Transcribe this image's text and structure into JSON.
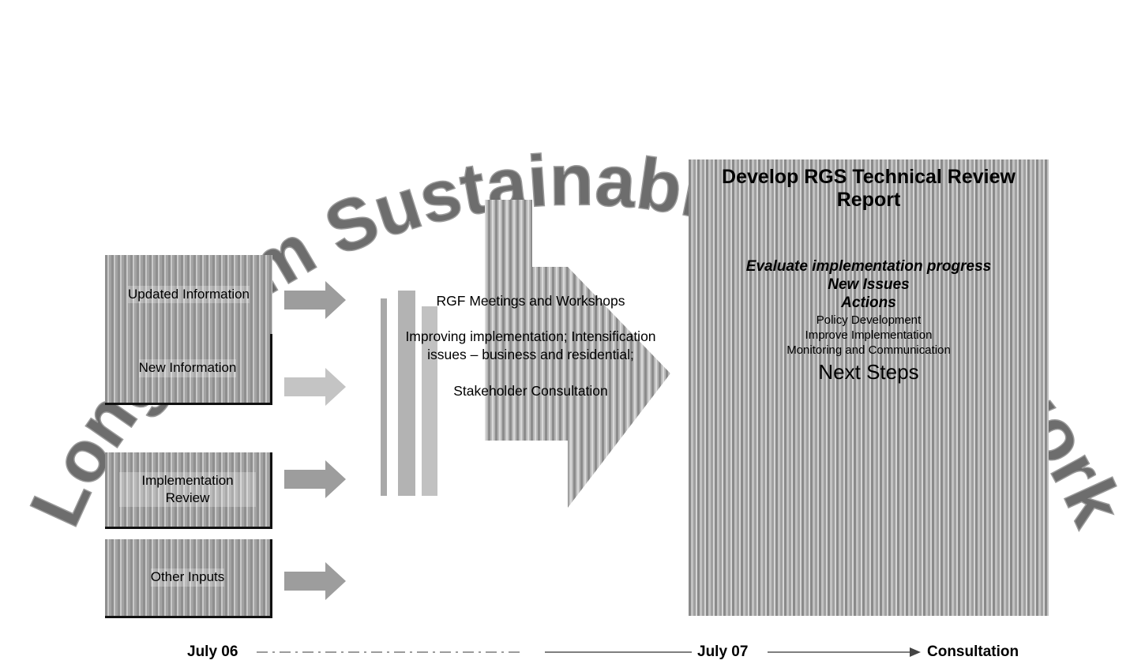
{
  "arc_title": "Long Term Sustainability Framework",
  "inputs": [
    {
      "label": "Updated Information"
    },
    {
      "label": "New Information"
    },
    {
      "label": "Implementation Review"
    },
    {
      "label": "Other Inputs"
    }
  ],
  "center": {
    "meetings": "RGF Meetings and Workshops",
    "improving": "Improving implementation; Intensification issues – business and residential;",
    "consultation": "Stakeholder Consultation"
  },
  "report": {
    "title": "Develop RGS Technical Review Report",
    "evaluate": "Evaluate implementation progress",
    "new_issues": "New Issues",
    "actions": "Actions",
    "policy": "Policy Development",
    "improve": "Improve Implementation",
    "monitoring": "Monitoring and Communication",
    "next_steps": "Next Steps"
  },
  "timeline": {
    "start": "July 06",
    "middle": "July 07",
    "end": "Consultation"
  }
}
